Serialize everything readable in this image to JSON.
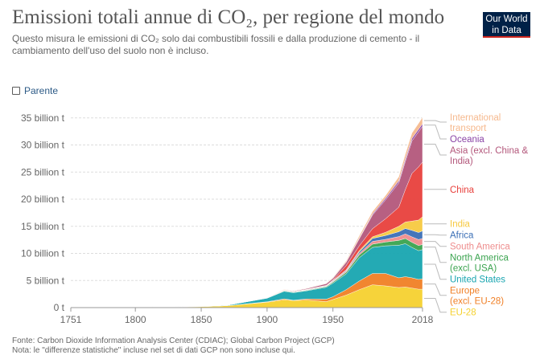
{
  "header": {
    "title": "Emissioni totali annue di CO₂, per regione del mondo",
    "subtitle": "Questo misura le emissioni di CO₂ solo dai combustibili fossili e dalla produzione di cemento - il cambiamento dell'uso del suolo non è incluso.",
    "logo_line1": "Our World",
    "logo_line2": "in Data"
  },
  "controls": {
    "relative_label": "Parente",
    "relative_checked": false
  },
  "footer": {
    "source": "Fonte: Carbon Dioxide Information Analysis Center (CDIAC); Global Carbon Project (GCP)",
    "note": "Nota: le \"differenze statistiche\" incluse nel set di dati GCP non sono incluse qui."
  },
  "chart_data": {
    "type": "area",
    "stacked": true,
    "title": "Emissioni totali annue di CO₂, per regione del mondo",
    "x_ticks": [
      "1751",
      "1800",
      "1850",
      "1900",
      "1950",
      "2018"
    ],
    "y_ticks": [
      "0 t",
      "5 billion t",
      "10 billion t",
      "15 billion t",
      "20 billion t",
      "25 billion t",
      "30 billion t",
      "35 billion t"
    ],
    "ylim": [
      0,
      36000000000
    ],
    "grid": true,
    "legend_position": "right",
    "x": [
      1751,
      1800,
      1850,
      1870,
      1900,
      1913,
      1920,
      1930,
      1945,
      1950,
      1960,
      1970,
      1980,
      1990,
      2000,
      2005,
      2010,
      2015,
      2018
    ],
    "series": [
      {
        "name": "EU-28",
        "color": "#f5d12f",
        "values": [
          0.009,
          0.03,
          0.18,
          0.35,
          1.0,
          1.45,
          1.3,
          1.4,
          1.1,
          1.5,
          2.3,
          3.3,
          4.2,
          4.0,
          3.7,
          3.8,
          3.6,
          3.4,
          3.4
        ]
      },
      {
        "name": "Europe (excl. EU-28)",
        "color": "#f07f25",
        "values": [
          0,
          0,
          0.005,
          0.01,
          0.08,
          0.16,
          0.06,
          0.2,
          0.45,
          0.5,
          1.0,
          1.6,
          2.1,
          2.3,
          1.8,
          1.9,
          1.9,
          1.8,
          1.9
        ]
      },
      {
        "name": "United States",
        "color": "#18a5b0",
        "values": [
          0,
          0.001,
          0.03,
          0.1,
          0.65,
          1.4,
          1.4,
          1.5,
          2.2,
          2.5,
          2.9,
          4.3,
          4.8,
          5.1,
          6.0,
          6.1,
          5.6,
          5.3,
          5.4
        ]
      },
      {
        "name": "North America (excl. USA)",
        "color": "#3aa34f",
        "values": [
          0,
          0,
          0.002,
          0.005,
          0.04,
          0.1,
          0.1,
          0.1,
          0.15,
          0.2,
          0.3,
          0.5,
          0.6,
          0.7,
          0.9,
          0.95,
          0.95,
          0.95,
          0.95
        ]
      },
      {
        "name": "South America",
        "color": "#ee8d8d",
        "values": [
          0,
          0,
          0,
          0,
          0.01,
          0.03,
          0.03,
          0.05,
          0.07,
          0.1,
          0.2,
          0.3,
          0.5,
          0.5,
          0.7,
          0.85,
          1.0,
          1.1,
          1.1
        ]
      },
      {
        "name": "Africa",
        "color": "#3b6fb6",
        "values": [
          0,
          0,
          0,
          0,
          0.01,
          0.02,
          0.02,
          0.04,
          0.05,
          0.1,
          0.15,
          0.3,
          0.55,
          0.7,
          0.9,
          1.0,
          1.2,
          1.3,
          1.4
        ]
      },
      {
        "name": "India",
        "color": "#f7c940",
        "values": [
          0,
          0,
          0,
          0,
          0.03,
          0.03,
          0.03,
          0.04,
          0.04,
          0.1,
          0.1,
          0.2,
          0.3,
          0.6,
          1.0,
          1.2,
          1.7,
          2.3,
          2.6
        ]
      },
      {
        "name": "China",
        "color": "#e8403c",
        "values": [
          0,
          0,
          0,
          0,
          0.002,
          0.02,
          0.02,
          0.03,
          0.05,
          0.1,
          0.8,
          0.9,
          1.5,
          2.5,
          3.5,
          6.0,
          8.8,
          9.8,
          10.1
        ]
      },
      {
        "name": "Asia (excl. China & India)",
        "color": "#b3577b",
        "values": [
          0,
          0,
          0,
          0,
          0.05,
          0.08,
          0.1,
          0.15,
          0.3,
          0.3,
          0.6,
          1.3,
          2.5,
          3.5,
          4.5,
          5.2,
          6.0,
          6.5,
          6.6
        ]
      },
      {
        "name": "Oceania",
        "color": "#8a44a6",
        "values": [
          0,
          0,
          0,
          0,
          0.01,
          0.02,
          0.02,
          0.03,
          0.04,
          0.05,
          0.09,
          0.13,
          0.2,
          0.3,
          0.38,
          0.42,
          0.45,
          0.44,
          0.46
        ]
      },
      {
        "name": "International transport",
        "color": "#f6b98e",
        "values": [
          0,
          0,
          0,
          0,
          0.02,
          0.05,
          0.05,
          0.06,
          0.07,
          0.1,
          0.2,
          0.4,
          0.45,
          0.5,
          0.75,
          0.9,
          1.0,
          1.1,
          1.2
        ]
      }
    ],
    "value_unit_note": "values in billion t"
  }
}
